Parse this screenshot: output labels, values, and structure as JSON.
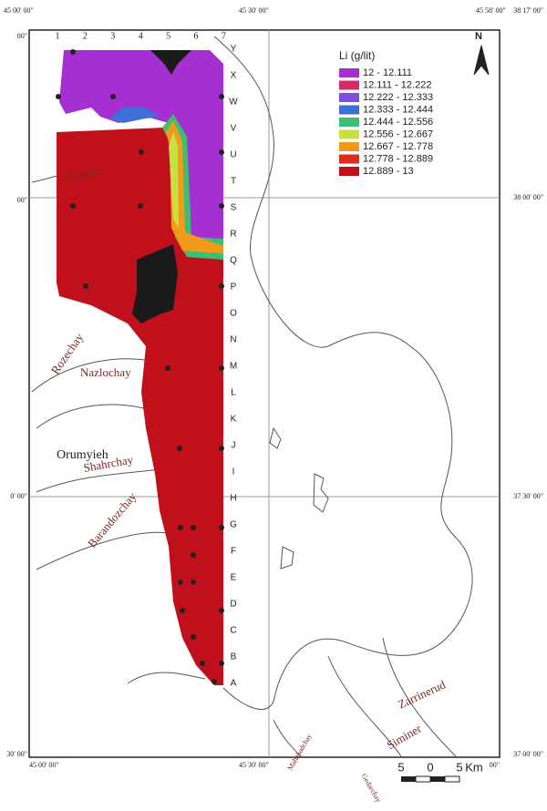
{
  "frame": {
    "top_labels": [
      "45 00' 00\"",
      "45 30' 00\"",
      "45 58' 00\""
    ],
    "right_labels": [
      "38 17' 00\"",
      "38 00' 00\"",
      "37 30' 00\"",
      "37 00' 00\""
    ],
    "left_labels": [
      "00\"",
      "00\"",
      "0' 00\"",
      "30' 00\""
    ],
    "bottom_labels": [
      "45 00' 00\"",
      "45 30' 00\"",
      "00\""
    ]
  },
  "columns": [
    "1",
    "2",
    "3",
    "4",
    "5",
    "6",
    "7"
  ],
  "rows": [
    "Y",
    "X",
    "W",
    "V",
    "U",
    "T",
    "S",
    "R",
    "Q",
    "P",
    "O",
    "N",
    "M",
    "L",
    "K",
    "J",
    "I",
    "H",
    "G",
    "F",
    "E",
    "D",
    "C",
    "B",
    "A"
  ],
  "legend": {
    "title": "Li (g/lit)",
    "items": [
      {
        "label": "12 - 12.111",
        "color": "#a52fd0"
      },
      {
        "label": "12.111 - 12.222",
        "color": "#d8286a"
      },
      {
        "label": "12.222 - 12.333",
        "color": "#7c50d8"
      },
      {
        "label": "12.333 - 12.444",
        "color": "#3f6fd4"
      },
      {
        "label": "12.444 - 12.556",
        "color": "#3cc070"
      },
      {
        "label": "12.556 - 12.667",
        "color": "#c8e040"
      },
      {
        "label": "12.667 - 12.778",
        "color": "#f29a1c"
      },
      {
        "label": "12.778 - 12.889",
        "color": "#e02a1c"
      },
      {
        "label": "12.889 - 13",
        "color": "#c0101c"
      }
    ]
  },
  "rivers": [
    "Zolacha",
    "Rozechay",
    "Nazlochay",
    "Shahrchay",
    "Barandozchay",
    "Zarrinerud",
    "Siminer",
    "Mahabadchay",
    "Gedarchay"
  ],
  "city": "Orumyieh",
  "north": "N",
  "scale": [
    "5",
    "0",
    "5",
    "Km"
  ]
}
